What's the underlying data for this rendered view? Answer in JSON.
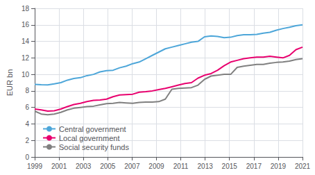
{
  "chart_data": {
    "type": "line",
    "ylabel": "EUR bn",
    "x": [
      1999,
      1999.536585,
      2000.073171,
      2000.609756,
      2001.146341,
      2001.682927,
      2002.219512,
      2002.756098,
      2003.292683,
      2003.829268,
      2004.365854,
      2004.902439,
      2005.439024,
      2005.97561,
      2006.512195,
      2007.04878,
      2007.585366,
      2008.121951,
      2008.658537,
      2009.195122,
      2009.731707,
      2010.268293,
      2010.804878,
      2011.341463,
      2011.878049,
      2012.414634,
      2012.95122,
      2013.487805,
      2014.02439,
      2014.560976,
      2015.097561,
      2015.634146,
      2016.170732,
      2016.707317,
      2017.243902,
      2017.780488,
      2018.317073,
      2018.853659,
      2019.390244,
      2019.926829,
      2020.463415,
      2021
    ],
    "xlim": [
      1999,
      2021
    ],
    "ylim": [
      0,
      18
    ],
    "xticks": [
      1999,
      2001,
      2003,
      2005,
      2007,
      2009,
      2011,
      2013,
      2015,
      2017,
      2019,
      2021
    ],
    "yticks": [
      0,
      2,
      4,
      6,
      8,
      10,
      12,
      14,
      16,
      18
    ],
    "grid": true,
    "legend": "lower left",
    "series": [
      {
        "name": "Central government",
        "color": "#4da6d9",
        "values": [
          8.8,
          8.75,
          8.72,
          8.85,
          9.0,
          9.3,
          9.5,
          9.6,
          9.85,
          10.0,
          10.3,
          10.45,
          10.5,
          10.8,
          11.0,
          11.3,
          11.5,
          11.9,
          12.3,
          12.7,
          13.1,
          13.3,
          13.5,
          13.7,
          13.9,
          14.0,
          14.55,
          14.65,
          14.6,
          14.45,
          14.5,
          14.7,
          14.8,
          14.8,
          14.85,
          15.0,
          15.1,
          15.35,
          15.55,
          15.7,
          15.9,
          16.0
        ]
      },
      {
        "name": "Local government",
        "color": "#e8006e",
        "values": [
          5.8,
          5.7,
          5.55,
          5.6,
          5.8,
          6.1,
          6.35,
          6.5,
          6.7,
          6.85,
          6.9,
          7.0,
          7.3,
          7.5,
          7.55,
          7.6,
          7.85,
          7.9,
          8.0,
          8.15,
          8.3,
          8.5,
          8.7,
          8.9,
          9.0,
          9.55,
          9.9,
          10.1,
          10.5,
          11.05,
          11.5,
          11.7,
          11.9,
          12.0,
          12.1,
          12.1,
          12.2,
          12.1,
          12.0,
          12.3,
          13.0,
          13.3
        ]
      },
      {
        "name": "Social security funds",
        "color": "#808080",
        "values": [
          5.55,
          5.2,
          5.1,
          5.2,
          5.4,
          5.7,
          5.9,
          6.0,
          6.1,
          6.15,
          6.3,
          6.45,
          6.5,
          6.6,
          6.55,
          6.5,
          6.6,
          6.65,
          6.65,
          6.7,
          7.0,
          8.2,
          8.3,
          8.35,
          8.4,
          8.7,
          9.4,
          9.8,
          9.9,
          10.0,
          10.0,
          10.85,
          11.0,
          11.1,
          11.2,
          11.2,
          11.35,
          11.45,
          11.5,
          11.6,
          11.8,
          11.9
        ]
      }
    ]
  }
}
